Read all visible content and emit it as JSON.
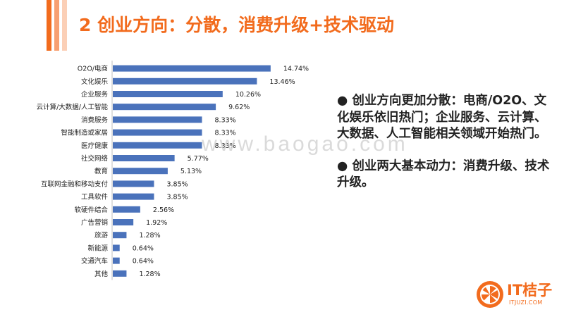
{
  "header": {
    "title": "2  创业方向：分散，消费升级+技术驱动",
    "title_color": "#f26b1d",
    "accent_colors": [
      "#f26b1d",
      "#f7a072",
      "#fbcfb6"
    ]
  },
  "chart_data": {
    "type": "bar",
    "orientation": "horizontal",
    "categories": [
      "O2O/电商",
      "文化娱乐",
      "企业服务",
      "云计算/大数据/人工智能",
      "消费服务",
      "智能制造或家居",
      "医疗健康",
      "社交网络",
      "教育",
      "互联网金融和移动支付",
      "工具软件",
      "软硬件结合",
      "广告营销",
      "旅游",
      "新能源",
      "交通汽车",
      "其他"
    ],
    "values": [
      14.74,
      13.46,
      10.26,
      9.62,
      8.33,
      8.33,
      8.33,
      5.77,
      5.13,
      3.85,
      3.85,
      2.56,
      1.92,
      1.28,
      0.64,
      0.64,
      1.28
    ],
    "value_labels": [
      "14.74%",
      "13.46%",
      "10.26%",
      "9.62%",
      "8.33%",
      "8.33%",
      "8.33%",
      "5.77%",
      "5.13%",
      "3.85%",
      "3.85%",
      "2.56%",
      "1.92%",
      "1.28%",
      "0.64%",
      "0.64%",
      "1.28%"
    ],
    "bar_color": "#4a72bb",
    "xlim": [
      0,
      16
    ],
    "grid": false,
    "legend": "none"
  },
  "bullets": [
    "● 创业方向更加分散：电商/O2O、文化娱乐依旧热门；企业服务、云计算、大数据、人工智能相关领域开始热门。",
    "● 创业两大基本动力：消费升级、技术升级。"
  ],
  "watermark": "www.baogao.com",
  "logo": {
    "name": "IT桔子",
    "url": "ITJUZI.COM",
    "color": "#f26b1d",
    "icon": "orange-slice-icon"
  }
}
